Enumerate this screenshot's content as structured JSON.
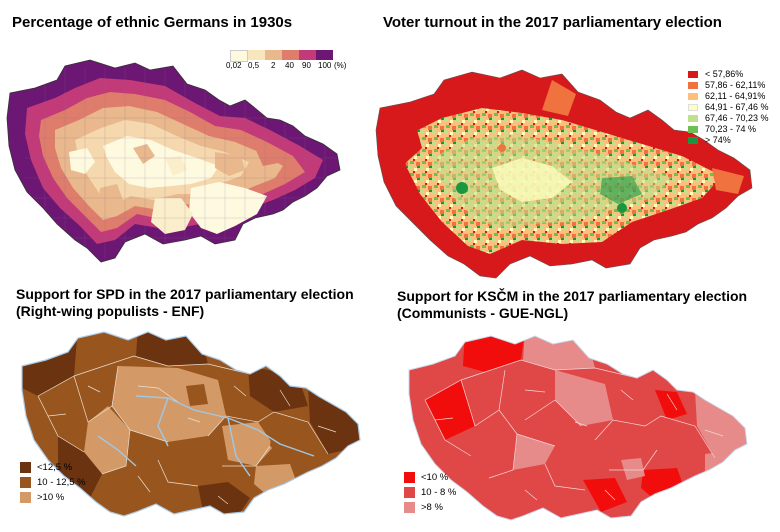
{
  "panels": {
    "germans": {
      "title": "Percentage of ethnic Germans in 1930s",
      "scale": {
        "labels": [
          "0,02",
          "0,5",
          "2",
          "40",
          "90",
          "100",
          "(%)"
        ],
        "colors": [
          "#fefae0",
          "#f8e6bc",
          "#e9b88c",
          "#de7d6c",
          "#c23a78",
          "#6b1773"
        ]
      }
    },
    "turnout": {
      "title": "Voter turnout in the 2017 parliamentary election",
      "legend": [
        {
          "label": "< 57,86%",
          "color": "#d7191c"
        },
        {
          "label": "57,86 - 62,11%",
          "color": "#f0733f"
        },
        {
          "label": "62,11 - 64,91%",
          "color": "#fdc07a"
        },
        {
          "label": "64,91 - 67,46 %",
          "color": "#fefebe"
        },
        {
          "label": "67,46 - 70,23 %",
          "color": "#bfe08c"
        },
        {
          "label": "70,23 - 74 %",
          "color": "#6ebf52"
        },
        {
          "label": "> 74%",
          "color": "#1a9641"
        }
      ]
    },
    "spd": {
      "title_line1": "Support for SPD in the 2017 parliamentary election",
      "title_line2": "(Right-wing populists - ENF)",
      "legend": [
        {
          "label": "<12,5 %",
          "color": "#6b3310"
        },
        {
          "label": "10 - 12,5 %",
          "color": "#98561e"
        },
        {
          "label": ">10 %",
          "color": "#d39a68"
        }
      ]
    },
    "kscm": {
      "title_line1": "Support for KSČM in the 2017 parliamentary election",
      "title_line2": "(Communists - GUE-NGL)",
      "legend": [
        {
          "label": "<10 %",
          "color": "#f20d0d"
        },
        {
          "label": "10 - 8 %",
          "color": "#e04848"
        },
        {
          "label": ">8 %",
          "color": "#e68a8a"
        }
      ]
    }
  }
}
